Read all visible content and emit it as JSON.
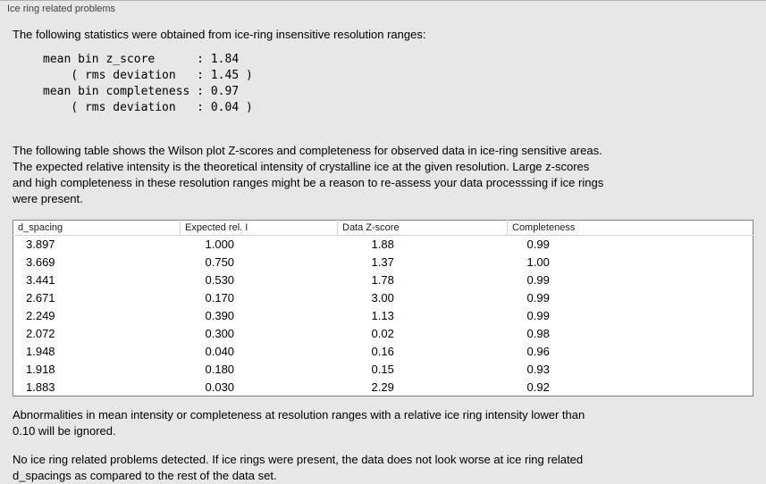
{
  "section_title": "Ice ring related problems",
  "intro": "The following statistics were obtained from ice-ring insensitive resolution ranges:",
  "stats": {
    "lines": [
      "mean bin z_score      : 1.84",
      "    ( rms deviation   : 1.45 )",
      "mean bin completeness : 0.97",
      "    ( rms deviation   : 0.04 )"
    ]
  },
  "table_intro_lines": [
    "The following table shows the Wilson plot Z-scores and completeness for observed data in ice-ring sensitive areas.",
    "The expected relative intensity is the theoretical intensity of crystalline ice at the given resolution. Large z-scores",
    "and high completeness in these resolution ranges might be a reason to re-assess your data processsing if ice rings",
    "were present."
  ],
  "table": {
    "columns": [
      "d_spacing",
      "Expected rel. I",
      "Data Z-score",
      "Completeness"
    ],
    "rows": [
      [
        "3.897",
        "1.000",
        "1.88",
        "0.99"
      ],
      [
        "3.669",
        "0.750",
        "1.37",
        "1.00"
      ],
      [
        "3.441",
        "0.530",
        "1.78",
        "0.99"
      ],
      [
        "2.671",
        "0.170",
        "3.00",
        "0.99"
      ],
      [
        "2.249",
        "0.390",
        "1.13",
        "0.99"
      ],
      [
        "2.072",
        "0.300",
        "0.02",
        "0.98"
      ],
      [
        "1.948",
        "0.040",
        "0.16",
        "0.96"
      ],
      [
        "1.918",
        "0.180",
        "0.15",
        "0.93"
      ],
      [
        "1.883",
        "0.030",
        "2.29",
        "0.92"
      ]
    ]
  },
  "note_ignore_lines": [
    "Abnormalities in mean intensity or completeness at resolution ranges with a relative ice ring intensity lower than",
    "0.10 will be ignored."
  ],
  "note_result_lines": [
    "No ice ring related problems detected. If ice rings were present, the data does not look worse at ice ring related",
    "d_spacings as compared to the rest of the data set."
  ]
}
